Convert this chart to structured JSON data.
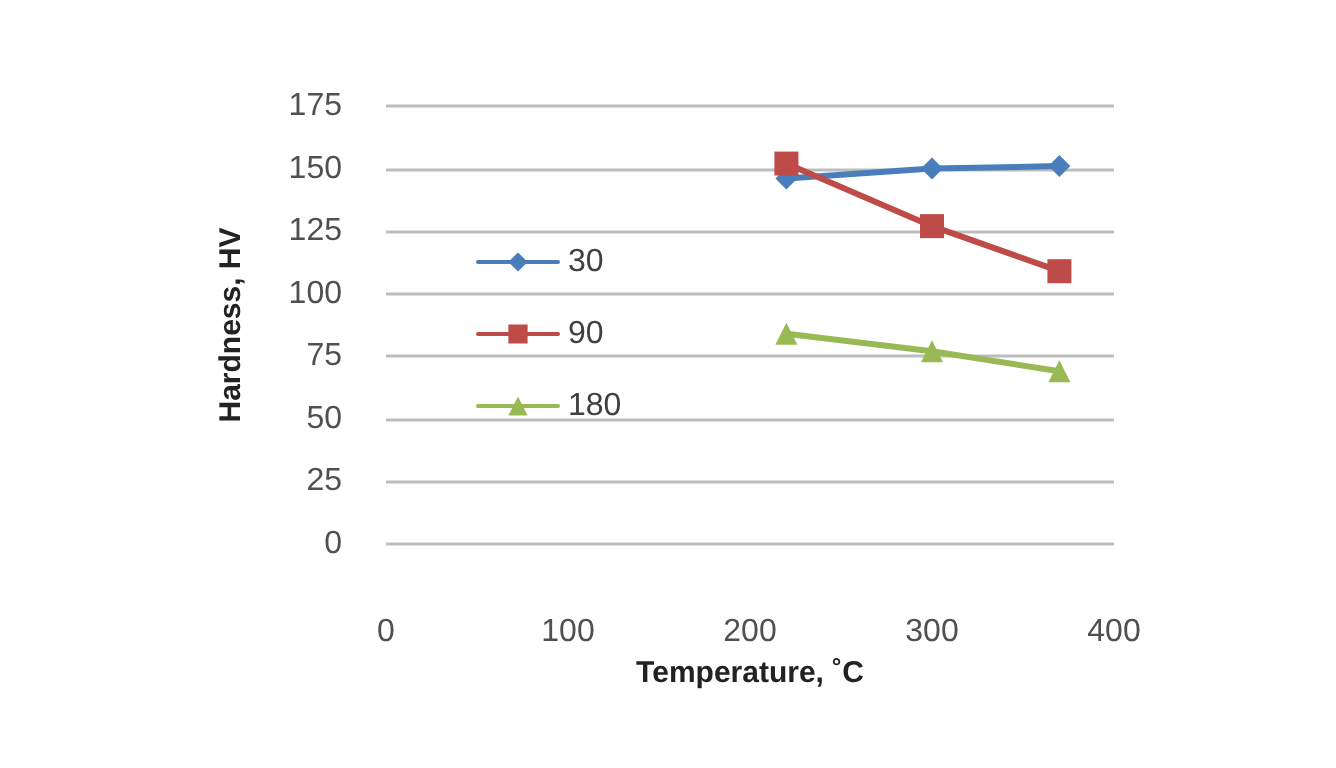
{
  "chart_data": {
    "type": "line",
    "xlabel": "Temperature, ˚C",
    "ylabel": "Hardness, HV",
    "x": [
      220,
      300,
      370
    ],
    "series": [
      {
        "name": "30",
        "color": "#4a7ebb",
        "values": [
          146,
          150,
          151
        ],
        "marker": "diamond"
      },
      {
        "name": "90",
        "color": "#be4b48",
        "values": [
          152,
          127,
          109
        ],
        "marker": "square"
      },
      {
        "name": "180",
        "color": "#98b954",
        "values": [
          84,
          77,
          69
        ],
        "marker": "triangle"
      }
    ],
    "xlim": [
      0,
      400
    ],
    "xticks": [
      0,
      100,
      200,
      300,
      400
    ],
    "ylim": [
      0,
      175
    ],
    "yticks": [
      0,
      25,
      50,
      75,
      100,
      125,
      150,
      175
    ],
    "grid": "y",
    "legend": "left"
  }
}
